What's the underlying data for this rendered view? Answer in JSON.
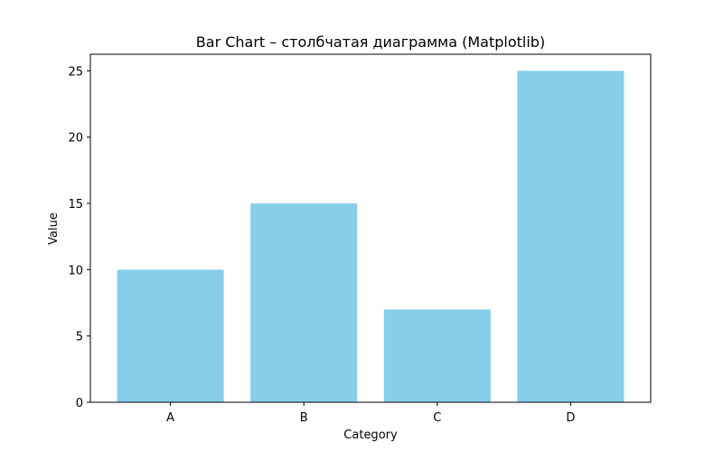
{
  "chart_data": {
    "type": "bar",
    "title": "Bar Chart – столбчатая диаграмма (Matplotlib)",
    "xlabel": "Category",
    "ylabel": "Value",
    "categories": [
      "A",
      "B",
      "C",
      "D"
    ],
    "values": [
      10,
      15,
      7,
      25
    ],
    "ylim": [
      0,
      26.25
    ],
    "yticks": [
      0,
      5,
      10,
      15,
      20,
      25
    ],
    "bar_color": "#87ceeb",
    "axis_color": "#000000",
    "grid": false,
    "legend": false
  }
}
